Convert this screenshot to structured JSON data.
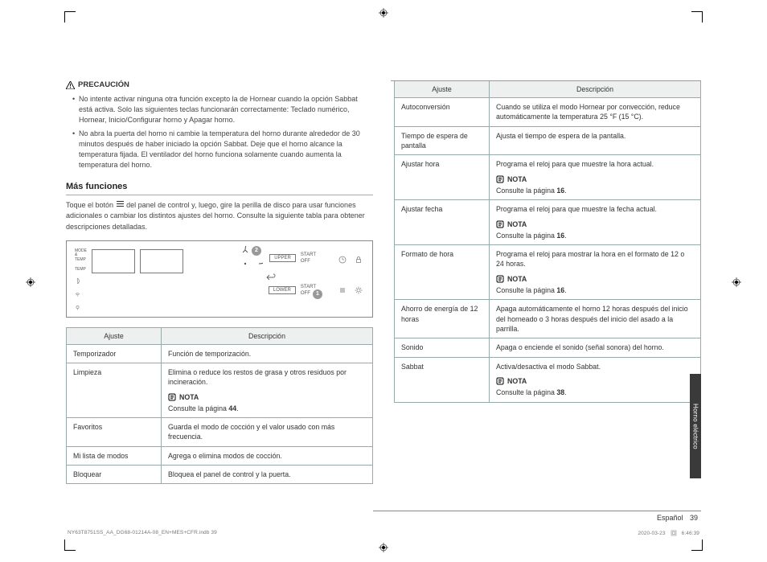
{
  "caution": {
    "title": "PRECAUCIÓN",
    "items": [
      "No intente activar ninguna otra función excepto la de Hornear cuando la opción Sabbat está activa. Solo las siguientes teclas funcionarán correctamente: Teclado numérico, Hornear, Inicio/Configurar horno y Apagar horno.",
      "No abra la puerta del horno ni cambie la temperatura del horno durante alrededor de 30 minutos después de haber iniciado la opción Sabbat. Deje que el horno alcance la temperatura fijada. El ventilador del horno funciona solamente cuando aumenta la temperatura del horno."
    ]
  },
  "section_title": "Más funciones",
  "intro_pre": "Toque el botón ",
  "intro_post": " del panel de control y, luego, gire la perilla de disco para usar funciones adicionales o cambiar los distintos ajustes del horno. Consulte la siguiente tabla para obtener descripciones detalladas.",
  "panel": {
    "row_labels": [
      "MODE\n&\nTEMP",
      "TEMP",
      "",
      "",
      ""
    ],
    "upper": "UPPER",
    "lower": "LOWER",
    "start": "START",
    "off": "OFF",
    "n1": "1",
    "n2": "2"
  },
  "t1": {
    "h1": "Ajuste",
    "h2": "Descripción",
    "rows": [
      {
        "a": "Temporizador",
        "d": "Función de temporización."
      },
      {
        "a": "Limpieza",
        "d": "Elimina o reduce los restos de grasa y otros residuos por incineración.",
        "note": true,
        "ref": "44"
      },
      {
        "a": "Favoritos",
        "d": "Guarda el modo de cocción y el valor usado con más frecuencia."
      },
      {
        "a": "Mi lista de modos",
        "d": "Agrega o elimina modos de cocción."
      },
      {
        "a": "Bloquear",
        "d": "Bloquea el panel de control y la puerta."
      }
    ]
  },
  "t2": {
    "h1": "Ajuste",
    "h2": "Descripción",
    "rows": [
      {
        "a": "Autoconversión",
        "d": "Cuando se utiliza el modo Hornear por convección, reduce automáticamente la temperatura 25 °F (15 °C)."
      },
      {
        "a": "Tiempo de espera de pantalla",
        "d": "Ajusta el tiempo de espera de la pantalla."
      },
      {
        "a": "Ajustar hora",
        "d": "Programa el reloj para que muestre la hora actual.",
        "note": true,
        "ref": "16"
      },
      {
        "a": "Ajustar fecha",
        "d": "Programa el reloj para que muestre la fecha actual.",
        "note": true,
        "ref": "16"
      },
      {
        "a": "Formato de hora",
        "d": "Programa el reloj para mostrar la hora en el formato de 12 o 24 horas.",
        "note": true,
        "ref": "16"
      },
      {
        "a": "Ahorro de energía de 12 horas",
        "d": "Apaga automáticamente el horno 12 horas después del inicio del horneado o 3 horas después del inicio del asado a la parrilla."
      },
      {
        "a": "Sonido",
        "d": "Apaga o enciende el sonido (señal sonora) del horno."
      },
      {
        "a": "Sabbat",
        "d": "Activa/desactiva el modo Sabbat.",
        "note": true,
        "ref": "38"
      }
    ]
  },
  "nota": "NOTA",
  "consulte": "Consulte la página",
  "side_tab": "Horno eléctrico",
  "footer": {
    "lang": "Español",
    "page": "39"
  },
  "tiny": {
    "file": "NY63T8751SS_AA_DG68-01214A-08_EN+MES+CFR.indb   39",
    "date": "2020-03-23",
    "time": "6:46:39"
  }
}
